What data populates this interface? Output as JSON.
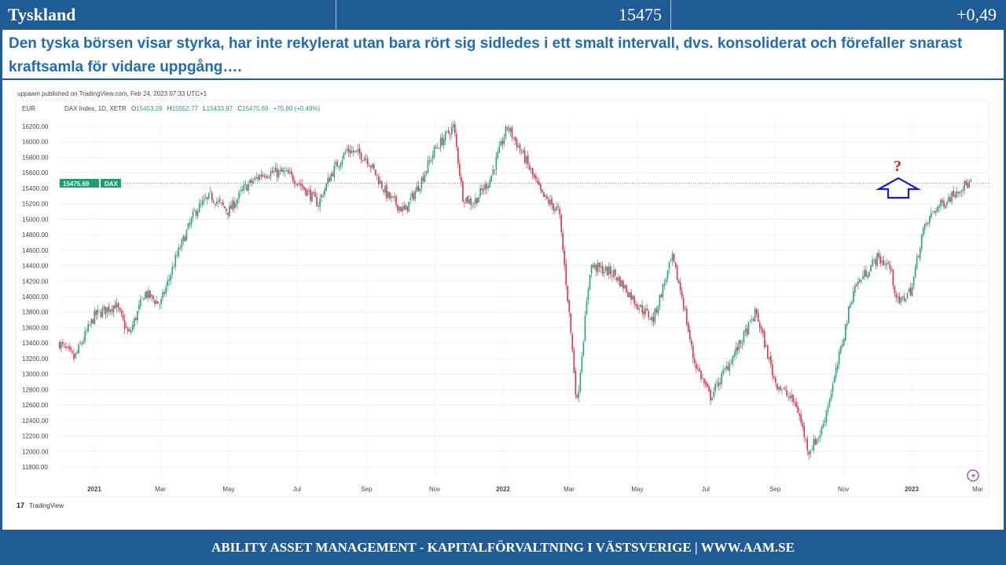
{
  "header": {
    "title": "Tyskland",
    "value": "15475",
    "change": "+0,49"
  },
  "description": "Den tyska börsen visar styrka, har inte rekylerat utan bara rört sig sidledes i ett smalt intervall, dvs. konsoliderat och förefaller snarast kraftsamla för vidare uppgång….",
  "footer": "ABILITY ASSET MANAGEMENT -  KAPITALFÖRVALTNING I VÄSTSVERIGE   |   WWW.AAM.SE",
  "annotation": {
    "question_mark": "?"
  },
  "colors": {
    "brand": "#1f5c96",
    "up": "#26a17b",
    "down": "#e0304a",
    "arrow": "#1a1ad6",
    "question": "#d41f1f"
  },
  "chart_data": {
    "type": "candlestick",
    "published": "uppaam published on TradingView.com, Feb 24, 2023 07:33 UTC+1",
    "currency": "EUR",
    "symbol": "DAX Index, 1D, XETR",
    "ohlc": {
      "o_label": "O",
      "o": "15453.29",
      "h_label": "H",
      "h": "15552.77",
      "l_label": "L",
      "l": "15433.97",
      "c_label": "C",
      "c": "15475.69",
      "chg": "+75.80 (+0.49%)"
    },
    "last_price": "15475.69",
    "last_tag": "DAX",
    "y_ticks": [
      "16200.00",
      "16000.00",
      "15800.00",
      "15600.00",
      "15400.00",
      "15200.00",
      "15000.00",
      "14800.00",
      "14600.00",
      "14400.00",
      "14200.00",
      "14000.00",
      "13800.00",
      "13600.00",
      "13400.00",
      "13200.00",
      "13000.00",
      "12800.00",
      "12600.00",
      "12400.00",
      "12200.00",
      "12000.00",
      "11800.00"
    ],
    "ylim": [
      11700,
      16350
    ],
    "x_ticks": [
      {
        "label": "2021",
        "date": "2021-01-01"
      },
      {
        "label": "Mar",
        "date": "2021-03-01"
      },
      {
        "label": "May",
        "date": "2021-05-01"
      },
      {
        "label": "Jul",
        "date": "2021-07-01"
      },
      {
        "label": "Sep",
        "date": "2021-09-01"
      },
      {
        "label": "Nov",
        "date": "2021-11-01"
      },
      {
        "label": "2022",
        "date": "2022-01-01"
      },
      {
        "label": "Mar",
        "date": "2022-03-01"
      },
      {
        "label": "May",
        "date": "2022-05-01"
      },
      {
        "label": "Jul",
        "date": "2022-07-01"
      },
      {
        "label": "Sep",
        "date": "2022-09-01"
      },
      {
        "label": "Nov",
        "date": "2022-11-01"
      },
      {
        "label": "2023",
        "date": "2023-01-01"
      },
      {
        "label": "Mar",
        "date": "2023-03-01"
      }
    ],
    "close_path": [
      [
        "2020-12-01",
        13400
      ],
      [
        "2020-12-14",
        13200
      ],
      [
        "2021-01-01",
        13750
      ],
      [
        "2021-01-20",
        13900
      ],
      [
        "2021-02-01",
        13500
      ],
      [
        "2021-02-15",
        14050
      ],
      [
        "2021-03-01",
        13900
      ],
      [
        "2021-03-15",
        14500
      ],
      [
        "2021-04-01",
        15100
      ],
      [
        "2021-04-15",
        15300
      ],
      [
        "2021-05-01",
        15100
      ],
      [
        "2021-05-15",
        15400
      ],
      [
        "2021-06-01",
        15600
      ],
      [
        "2021-06-20",
        15600
      ],
      [
        "2021-07-01",
        15500
      ],
      [
        "2021-07-20",
        15200
      ],
      [
        "2021-08-01",
        15600
      ],
      [
        "2021-08-15",
        15900
      ],
      [
        "2021-09-01",
        15800
      ],
      [
        "2021-09-20",
        15300
      ],
      [
        "2021-10-05",
        15100
      ],
      [
        "2021-10-20",
        15500
      ],
      [
        "2021-11-01",
        15900
      ],
      [
        "2021-11-18",
        16200
      ],
      [
        "2021-11-26",
        15300
      ],
      [
        "2021-12-05",
        15200
      ],
      [
        "2021-12-20",
        15500
      ],
      [
        "2022-01-05",
        16200
      ],
      [
        "2022-01-20",
        15800
      ],
      [
        "2022-02-05",
        15300
      ],
      [
        "2022-02-20",
        15100
      ],
      [
        "2022-03-01",
        13800
      ],
      [
        "2022-03-08",
        12600
      ],
      [
        "2022-03-20",
        14400
      ],
      [
        "2022-04-10",
        14300
      ],
      [
        "2022-05-01",
        13900
      ],
      [
        "2022-05-15",
        13700
      ],
      [
        "2022-06-01",
        14500
      ],
      [
        "2022-06-10",
        14000
      ],
      [
        "2022-06-20",
        13200
      ],
      [
        "2022-07-05",
        12700
      ],
      [
        "2022-08-01",
        13400
      ],
      [
        "2022-08-15",
        13800
      ],
      [
        "2022-09-01",
        12900
      ],
      [
        "2022-09-20",
        12600
      ],
      [
        "2022-10-01",
        12000
      ],
      [
        "2022-10-12",
        12250
      ],
      [
        "2022-10-25",
        13000
      ],
      [
        "2022-11-10",
        14100
      ],
      [
        "2022-12-01",
        14500
      ],
      [
        "2022-12-12",
        14400
      ],
      [
        "2022-12-20",
        13900
      ],
      [
        "2023-01-01",
        14100
      ],
      [
        "2023-01-10",
        14800
      ],
      [
        "2023-01-20",
        15100
      ],
      [
        "2023-02-05",
        15300
      ],
      [
        "2023-02-12",
        15400
      ],
      [
        "2023-02-24",
        15476
      ]
    ]
  },
  "tv_logo": "TradingView"
}
